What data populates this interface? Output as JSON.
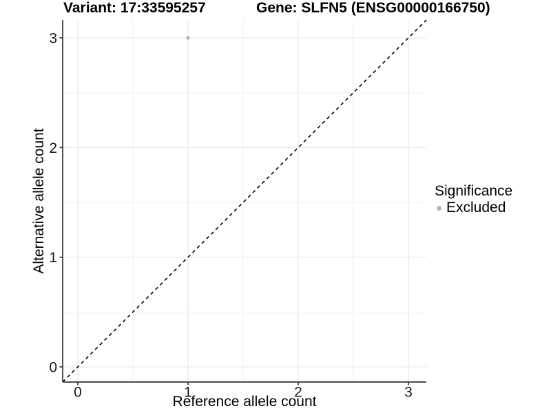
{
  "chart_data": {
    "type": "scatter",
    "title_left": "Variant: 17:33595257",
    "title_right": "Gene: SLFN5 (ENSG00000166750)",
    "xlabel": "Reference allele count",
    "ylabel": "Alternative allele count",
    "xlim": [
      -0.1375,
      3.1625
    ],
    "ylim": [
      -0.1381,
      3.1633
    ],
    "xticks": [
      0,
      1,
      2,
      3
    ],
    "yticks": [
      0,
      1,
      2,
      3
    ],
    "minor_xticks": [
      0.5,
      1.5,
      2.5
    ],
    "minor_yticks": [
      0.5,
      1.5,
      2.5
    ],
    "grid": "major+minor",
    "identity_line": {
      "slope": 1,
      "intercept": 0,
      "style": "dashed",
      "color": "#000000",
      "width": 1.6,
      "dash": "5 4.5"
    },
    "series": [
      {
        "name": "Excluded",
        "color": "#b3b3b3",
        "points": [
          {
            "x": 1,
            "y": 3
          }
        ]
      }
    ],
    "legend": {
      "title": "Significance",
      "position": "right",
      "items": [
        {
          "label": "Excluded",
          "color": "#b3b3b3",
          "marker": "circle"
        }
      ]
    },
    "style": {
      "background": "#ffffff",
      "major_grid_color": "#e6e6e6",
      "minor_grid_color": "#f2f2f2",
      "axis_line_color": "#333333",
      "axis_line_width": 1.7,
      "tick_color": "#333333",
      "tick_length": 4.5,
      "tick_label_color": "#1a1a1a",
      "tick_label_size": 21,
      "point_radius": 2.7,
      "legend_dot_radius": 3.5
    }
  }
}
